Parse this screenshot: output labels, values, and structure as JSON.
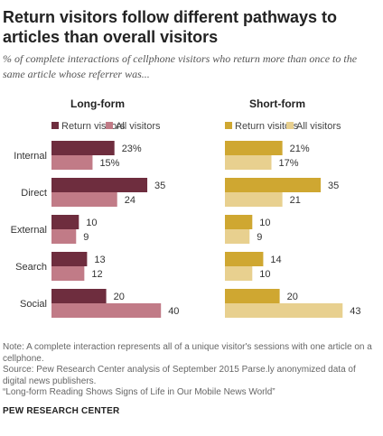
{
  "title": "Return visitors follow different pathways to articles than overall visitors",
  "subtitle": "% of complete interactions of cellphone visitors who return more than once to the same article whose referrer was...",
  "chart_data": [
    {
      "type": "bar",
      "orientation": "horizontal",
      "title": "Long-form",
      "categories": [
        "Internal",
        "Direct",
        "External",
        "Search",
        "Social"
      ],
      "series": [
        {
          "name": "Return visitors",
          "values": [
            23,
            35,
            10,
            13,
            20
          ],
          "color": "#6e2d3e"
        },
        {
          "name": "All visitors",
          "values": [
            15,
            24,
            9,
            12,
            40
          ],
          "color": "#c17b87"
        }
      ],
      "value_labels": [
        [
          "23%",
          "35",
          "10",
          "13",
          "20"
        ],
        [
          "15%",
          "24",
          "9",
          "12",
          "40"
        ]
      ],
      "legend_position": "top",
      "grid": false
    },
    {
      "type": "bar",
      "orientation": "horizontal",
      "title": "Short-form",
      "categories": [
        "Internal",
        "Direct",
        "External",
        "Search",
        "Social"
      ],
      "series": [
        {
          "name": "Return visitors",
          "values": [
            21,
            35,
            10,
            14,
            20
          ],
          "color": "#cfa731"
        },
        {
          "name": "All visitors",
          "values": [
            17,
            21,
            9,
            10,
            43
          ],
          "color": "#e8d08f"
        }
      ],
      "value_labels": [
        [
          "21%",
          "35",
          "10",
          "14",
          "20"
        ],
        [
          "17%",
          "21",
          "9",
          "10",
          "43"
        ]
      ],
      "legend_position": "top",
      "grid": false
    }
  ],
  "notes": [
    "Note: A complete interaction represents all of a unique visitor's sessions with one article on a cellphone.",
    "Source: Pew Research Center analysis of September 2015 Parse.ly anonymized data of digital news publishers.",
    "“Long-form Reading Shows Signs of Life in Our Mobile News World”"
  ],
  "source_org": "PEW RESEARCH CENTER"
}
